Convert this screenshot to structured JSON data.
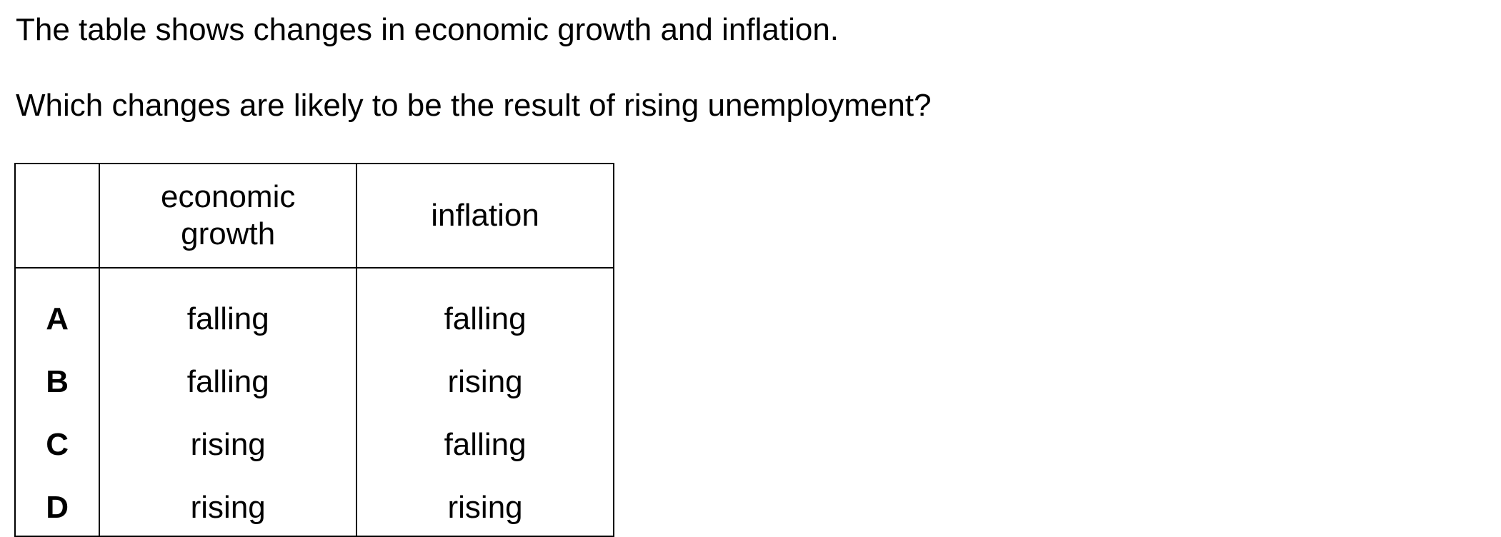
{
  "question": {
    "intro": "The table shows changes in economic growth and inflation.",
    "prompt": "Which changes are likely to be the result of rising unemployment?"
  },
  "table": {
    "headers": [
      "",
      "economic growth",
      "inflation"
    ],
    "rows": [
      {
        "option": "A",
        "economic_growth": "falling",
        "inflation": "falling"
      },
      {
        "option": "B",
        "economic_growth": "falling",
        "inflation": "rising"
      },
      {
        "option": "C",
        "economic_growth": "rising",
        "inflation": "falling"
      },
      {
        "option": "D",
        "economic_growth": "rising",
        "inflation": "rising"
      }
    ]
  }
}
